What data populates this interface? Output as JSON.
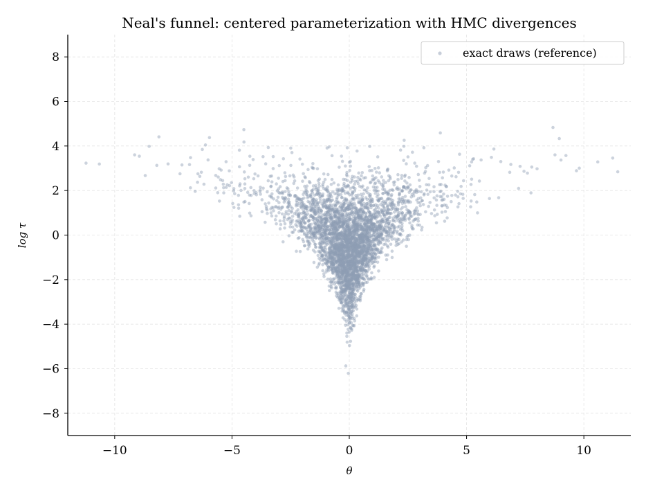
{
  "chart_data": {
    "type": "scatter",
    "title": "Neal's funnel: centered parameterization with HMC divergences",
    "xlabel": "θ",
    "ylabel": "log τ",
    "xlim": [
      -12,
      12
    ],
    "ylim": [
      -9,
      9
    ],
    "xticks": [
      -10,
      -5,
      0,
      5,
      10
    ],
    "xtick_labels": [
      "−10",
      "−5",
      "0",
      "5",
      "10"
    ],
    "yticks": [
      -8,
      -6,
      -4,
      -2,
      0,
      2,
      4,
      6,
      8
    ],
    "ytick_labels": [
      "−8",
      "−6",
      "−4",
      "−2",
      "0",
      "2",
      "4",
      "6",
      "8"
    ],
    "grid": true,
    "legend_position": "top-right",
    "series": [
      {
        "name": "exact draws (reference)",
        "color": "#8f9db4",
        "description_of_distribution": "log tau ~ Normal(0, 1.5); theta ~ Normal(0, exp(log tau / 2))",
        "point_count": 4000
      }
    ]
  }
}
